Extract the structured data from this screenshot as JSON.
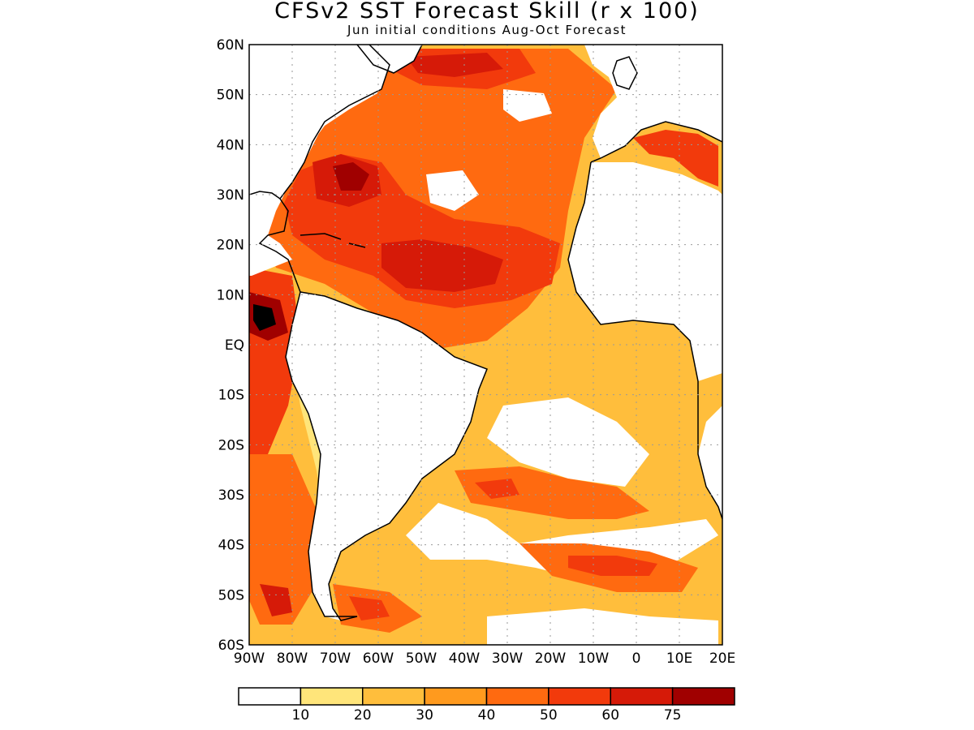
{
  "title": "CFSv2 SST Forecast Skill (r x 100)",
  "subtitle": "Jun initial conditions  Aug-Oct Forecast",
  "axes": {
    "lat_labels": [
      "60N",
      "50N",
      "40N",
      "30N",
      "20N",
      "10N",
      "EQ",
      "10S",
      "20S",
      "30S",
      "40S",
      "50S",
      "60S"
    ],
    "lon_labels": [
      "90W",
      "80W",
      "70W",
      "60W",
      "50W",
      "40W",
      "30W",
      "20W",
      "10W",
      "0",
      "10E",
      "20E"
    ],
    "grid": "dotted"
  },
  "colorbar": {
    "colors": [
      "#ffffff",
      "#ffe57a",
      "#ffbe3c",
      "#ff9a1e",
      "#ff6a10",
      "#f23a0c",
      "#d61a08",
      "#a00000"
    ],
    "labels": [
      "10",
      "20",
      "30",
      "40",
      "50",
      "60",
      "75"
    ]
  },
  "land_color": "#ffffff",
  "coast_color": "#000000"
}
